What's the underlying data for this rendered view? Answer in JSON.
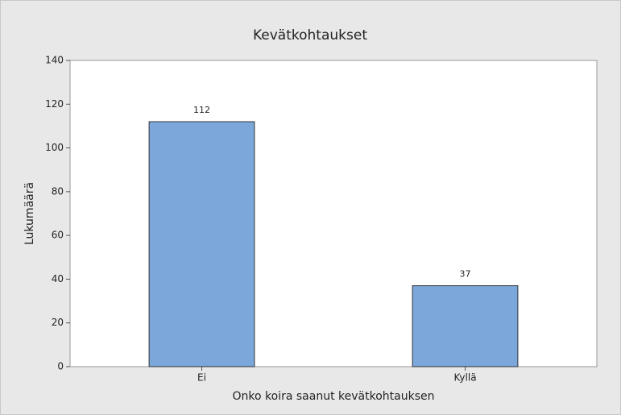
{
  "chart_data": {
    "type": "bar",
    "title": "Kevätkohtaukset",
    "x_label": "Onko koira saanut kevätkohtauksen",
    "y_label": "Lukumäärä",
    "categories": [
      "Ei",
      "Kyllä"
    ],
    "values": [
      112,
      37
    ],
    "color": "#7ba7da",
    "ylim": [
      0,
      140
    ],
    "yticks": [
      0,
      20,
      40,
      60,
      80,
      100,
      120,
      140
    ],
    "grid": false
  }
}
